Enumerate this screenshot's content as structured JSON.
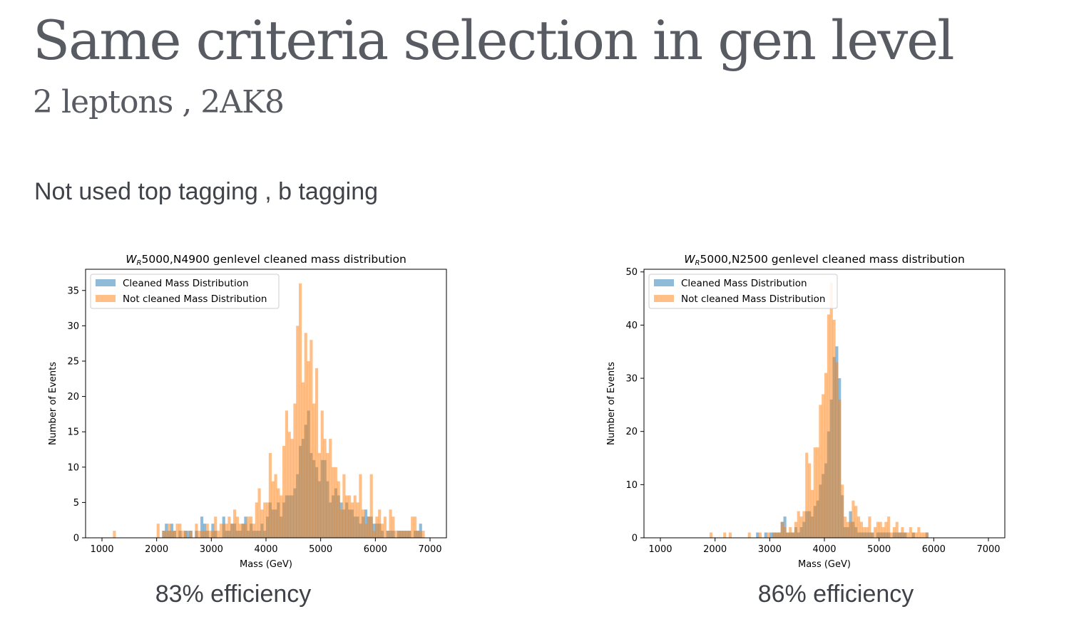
{
  "slide": {
    "title": "Same criteria selection in gen level",
    "subtitle": "2 leptons , 2AK8",
    "body": "Not used top tagging , b tagging"
  },
  "captions": [
    "83% efficiency",
    "86% efficiency"
  ],
  "colors": {
    "cleaned": "#1f77b4",
    "notcleaned": "#ff7f0e",
    "overlap": "#b58c67"
  },
  "chart_data": [
    {
      "type": "histogram",
      "title_prefix": "W",
      "title_sub": "R",
      "title_rest": "5000,N4900 genlevel cleaned mass distribution",
      "xlabel": "Mass (GeV)",
      "ylabel": "Number of Events",
      "xlim": [
        700,
        7300
      ],
      "ylim": [
        0,
        38
      ],
      "xticks": [
        1000,
        2000,
        3000,
        4000,
        5000,
        6000,
        7000
      ],
      "yticks": [
        0,
        5,
        10,
        15,
        20,
        25,
        30,
        35
      ],
      "legend_position": "top-left",
      "bin_start": 1200,
      "bin_width": 50,
      "series": [
        {
          "name": "Cleaned Mass Distribution",
          "values": [
            0,
            0,
            0,
            0,
            0,
            0,
            0,
            0,
            0,
            0,
            0,
            0,
            0,
            0,
            0,
            0,
            0,
            0,
            1,
            2,
            1,
            2,
            1,
            0,
            1,
            0,
            1,
            1,
            1,
            0,
            1,
            0,
            3,
            2,
            1,
            0,
            2,
            1,
            0,
            0,
            3,
            1,
            1,
            2,
            2,
            1,
            1,
            2,
            3,
            1,
            2,
            1,
            1,
            1,
            2,
            1,
            3,
            5,
            4,
            4,
            5,
            3,
            5,
            6,
            6,
            6,
            7,
            9,
            13,
            14,
            16,
            18,
            12,
            11,
            10,
            8,
            11,
            11,
            8,
            5,
            6,
            7,
            6,
            5,
            4,
            5,
            4,
            4,
            3,
            3,
            2,
            3,
            4,
            3,
            3,
            2,
            2,
            2,
            1,
            0,
            1,
            1,
            1,
            0,
            1,
            1,
            1,
            1,
            1,
            0,
            1,
            1,
            2,
            0
          ]
        },
        {
          "name": "Not cleaned Mass Distribution",
          "values": [
            1,
            0,
            0,
            0,
            0,
            0,
            0,
            0,
            0,
            0,
            0,
            0,
            0,
            0,
            0,
            0,
            2,
            0,
            1,
            1,
            2,
            1,
            1,
            2,
            2,
            1,
            1,
            0,
            1,
            0,
            2,
            1,
            1,
            1,
            2,
            1,
            1,
            3,
            1,
            2,
            2,
            2,
            3,
            2,
            4,
            3,
            2,
            2,
            2,
            3,
            3,
            2,
            5,
            7,
            4,
            5,
            5,
            12,
            8,
            9,
            7,
            6,
            13,
            18,
            15,
            14,
            19,
            30,
            36,
            22,
            29,
            25,
            28,
            19,
            24,
            12,
            18,
            14,
            12,
            14,
            10,
            10,
            8,
            4,
            9,
            6,
            6,
            5,
            6,
            5,
            9,
            4,
            2,
            3,
            9,
            1,
            3,
            4,
            2,
            3,
            1,
            4,
            3,
            1,
            1,
            1,
            1,
            1,
            1,
            3,
            3,
            1,
            1,
            1
          ]
        }
      ]
    },
    {
      "type": "histogram",
      "title_prefix": "W",
      "title_sub": "R",
      "title_rest": "5000,N2500 genlevel cleaned mass distribution",
      "xlabel": "Mass (GeV)",
      "ylabel": "Number of Events",
      "xlim": [
        700,
        7300
      ],
      "ylim": [
        0,
        50.5
      ],
      "xticks": [
        1000,
        2000,
        3000,
        4000,
        5000,
        6000,
        7000
      ],
      "yticks": [
        0,
        10,
        20,
        30,
        40,
        50
      ],
      "legend_position": "top-left",
      "bin_start": 1900,
      "bin_width": 50,
      "series": [
        {
          "name": "Cleaned Mass Distribution",
          "values": [
            0,
            0,
            0,
            0,
            0,
            0,
            0,
            0,
            0,
            0,
            0,
            0,
            0,
            0,
            0,
            0,
            0,
            1,
            0,
            0,
            1,
            0,
            1,
            1,
            1,
            1,
            3,
            4,
            1,
            1,
            1,
            2,
            1,
            2,
            3,
            5,
            5,
            4,
            6,
            7,
            10,
            12,
            14,
            20,
            26,
            34,
            36,
            30,
            8,
            2,
            2,
            5,
            3,
            2,
            1,
            1,
            1,
            1,
            1,
            1,
            0,
            1,
            1,
            1,
            1,
            1,
            0,
            1,
            1,
            1,
            1,
            1,
            0,
            0,
            1,
            0,
            0,
            0,
            0,
            1
          ]
        },
        {
          "name": "Not cleaned Mass Distribution",
          "values": [
            1,
            0,
            0,
            0,
            0,
            1,
            0,
            1,
            0,
            0,
            0,
            0,
            0,
            0,
            1,
            0,
            0,
            0,
            1,
            0,
            0,
            1,
            0,
            1,
            1,
            1,
            3,
            2,
            1,
            2,
            1,
            3,
            5,
            4,
            5,
            16,
            14,
            9,
            17,
            17,
            25,
            27,
            31,
            42,
            48,
            41,
            33,
            26,
            10,
            4,
            3,
            3,
            7,
            6,
            4,
            3,
            2,
            2,
            4,
            1,
            2,
            3,
            3,
            2,
            3,
            4,
            1,
            2,
            3,
            1,
            2,
            1,
            1,
            2,
            1,
            1,
            2,
            1,
            1,
            1
          ]
        }
      ]
    }
  ]
}
